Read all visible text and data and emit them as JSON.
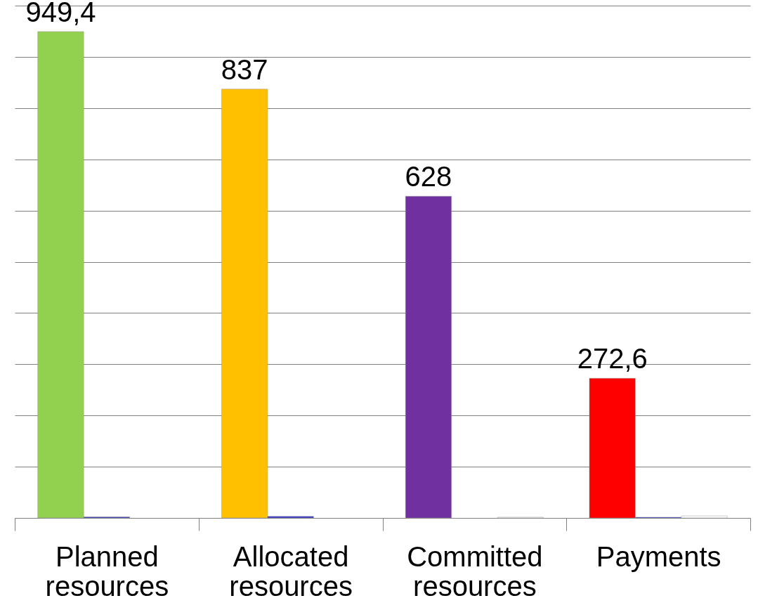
{
  "chart_data": {
    "type": "bar",
    "categories": [
      "Planned resources",
      "Allocated resources",
      "Committed resources",
      "Payments"
    ],
    "series": [
      {
        "colors": [
          "#92d050",
          "#ffc000",
          "#7030a0",
          "#ff0000"
        ],
        "values": [
          949.4,
          837,
          628,
          272.6
        ],
        "value_labels": [
          "949,4",
          "837",
          "628",
          "272,6"
        ]
      },
      {
        "color": "#3333cc",
        "values": [
          2,
          3,
          null,
          1.5
        ]
      },
      {
        "color": "#ffffff",
        "values": [
          null,
          null,
          1.5,
          4
        ]
      }
    ],
    "ylim": [
      0,
      1000
    ],
    "yticks": [
      {
        "value": 0,
        "label": null
      },
      {
        "value": 100,
        "label": null
      },
      {
        "value": 200,
        "label": null
      },
      {
        "value": 300,
        "label": null
      },
      {
        "value": 400,
        "label": null
      },
      {
        "value": 500,
        "label": null
      },
      {
        "value": 600,
        "label": null
      },
      {
        "value": 700,
        "label": null
      },
      {
        "value": 800,
        "label": null
      },
      {
        "value": 900,
        "label": null
      },
      {
        "value": 1000,
        "label": null
      }
    ],
    "grid": "y",
    "tick_labels": "x"
  }
}
